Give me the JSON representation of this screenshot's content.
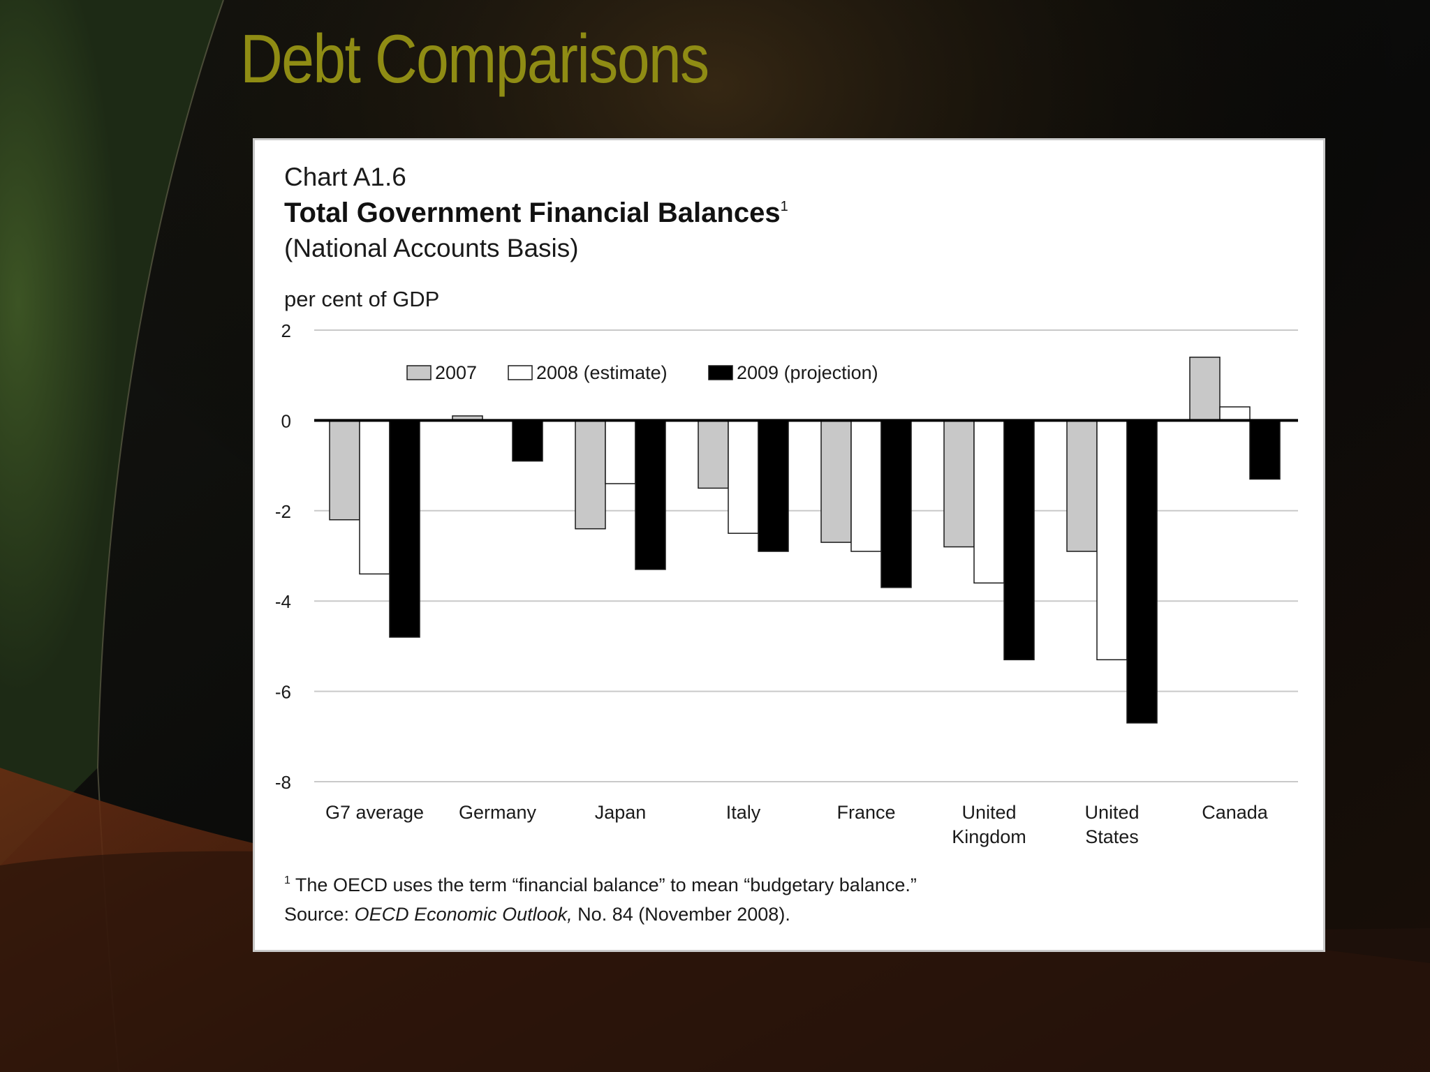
{
  "slide": {
    "title": "Debt Comparisons"
  },
  "colors": {
    "title": "#8f8c14",
    "bar_2007": "#c8c8c8",
    "bar_2008": "#ffffff",
    "bar_2009": "#000000"
  },
  "chart_data": {
    "type": "bar",
    "chart_number": "Chart A1.6",
    "title": "Total Government Financial Balances",
    "title_footnote_marker": "1",
    "subtitle": "(National Accounts Basis)",
    "ylabel": "per cent of GDP",
    "xlabel": "",
    "ylim": [
      -8,
      2
    ],
    "yticks": [
      "2",
      "0",
      "-2",
      "-4",
      "-6",
      "-8"
    ],
    "grid": true,
    "legend_position": "top-left",
    "categories": [
      [
        "G7 average"
      ],
      [
        "Germany"
      ],
      [
        "Japan"
      ],
      [
        "Italy"
      ],
      [
        "France"
      ],
      [
        "United",
        "Kingdom"
      ],
      [
        "United",
        "States"
      ],
      [
        "Canada"
      ]
    ],
    "series": [
      {
        "name": "2007",
        "values": [
          -2.2,
          0.1,
          -2.4,
          -1.5,
          -2.7,
          -2.8,
          -2.9,
          1.4
        ]
      },
      {
        "name": "2008 (estimate)",
        "values": [
          -3.4,
          0.0,
          -1.4,
          -2.5,
          -2.9,
          -3.6,
          -5.3,
          0.3
        ]
      },
      {
        "name": "2009 (projection)",
        "values": [
          -4.8,
          -0.9,
          -3.3,
          -2.9,
          -3.7,
          -5.3,
          -6.7,
          -1.3
        ]
      }
    ],
    "footnote_marker": "1",
    "footnote": "The OECD uses the term “financial balance” to mean “budgetary balance.”",
    "source_prefix": "Source: ",
    "source_title": "OECD Economic Outlook,",
    "source_rest": " No. 84 (November 2008)."
  }
}
